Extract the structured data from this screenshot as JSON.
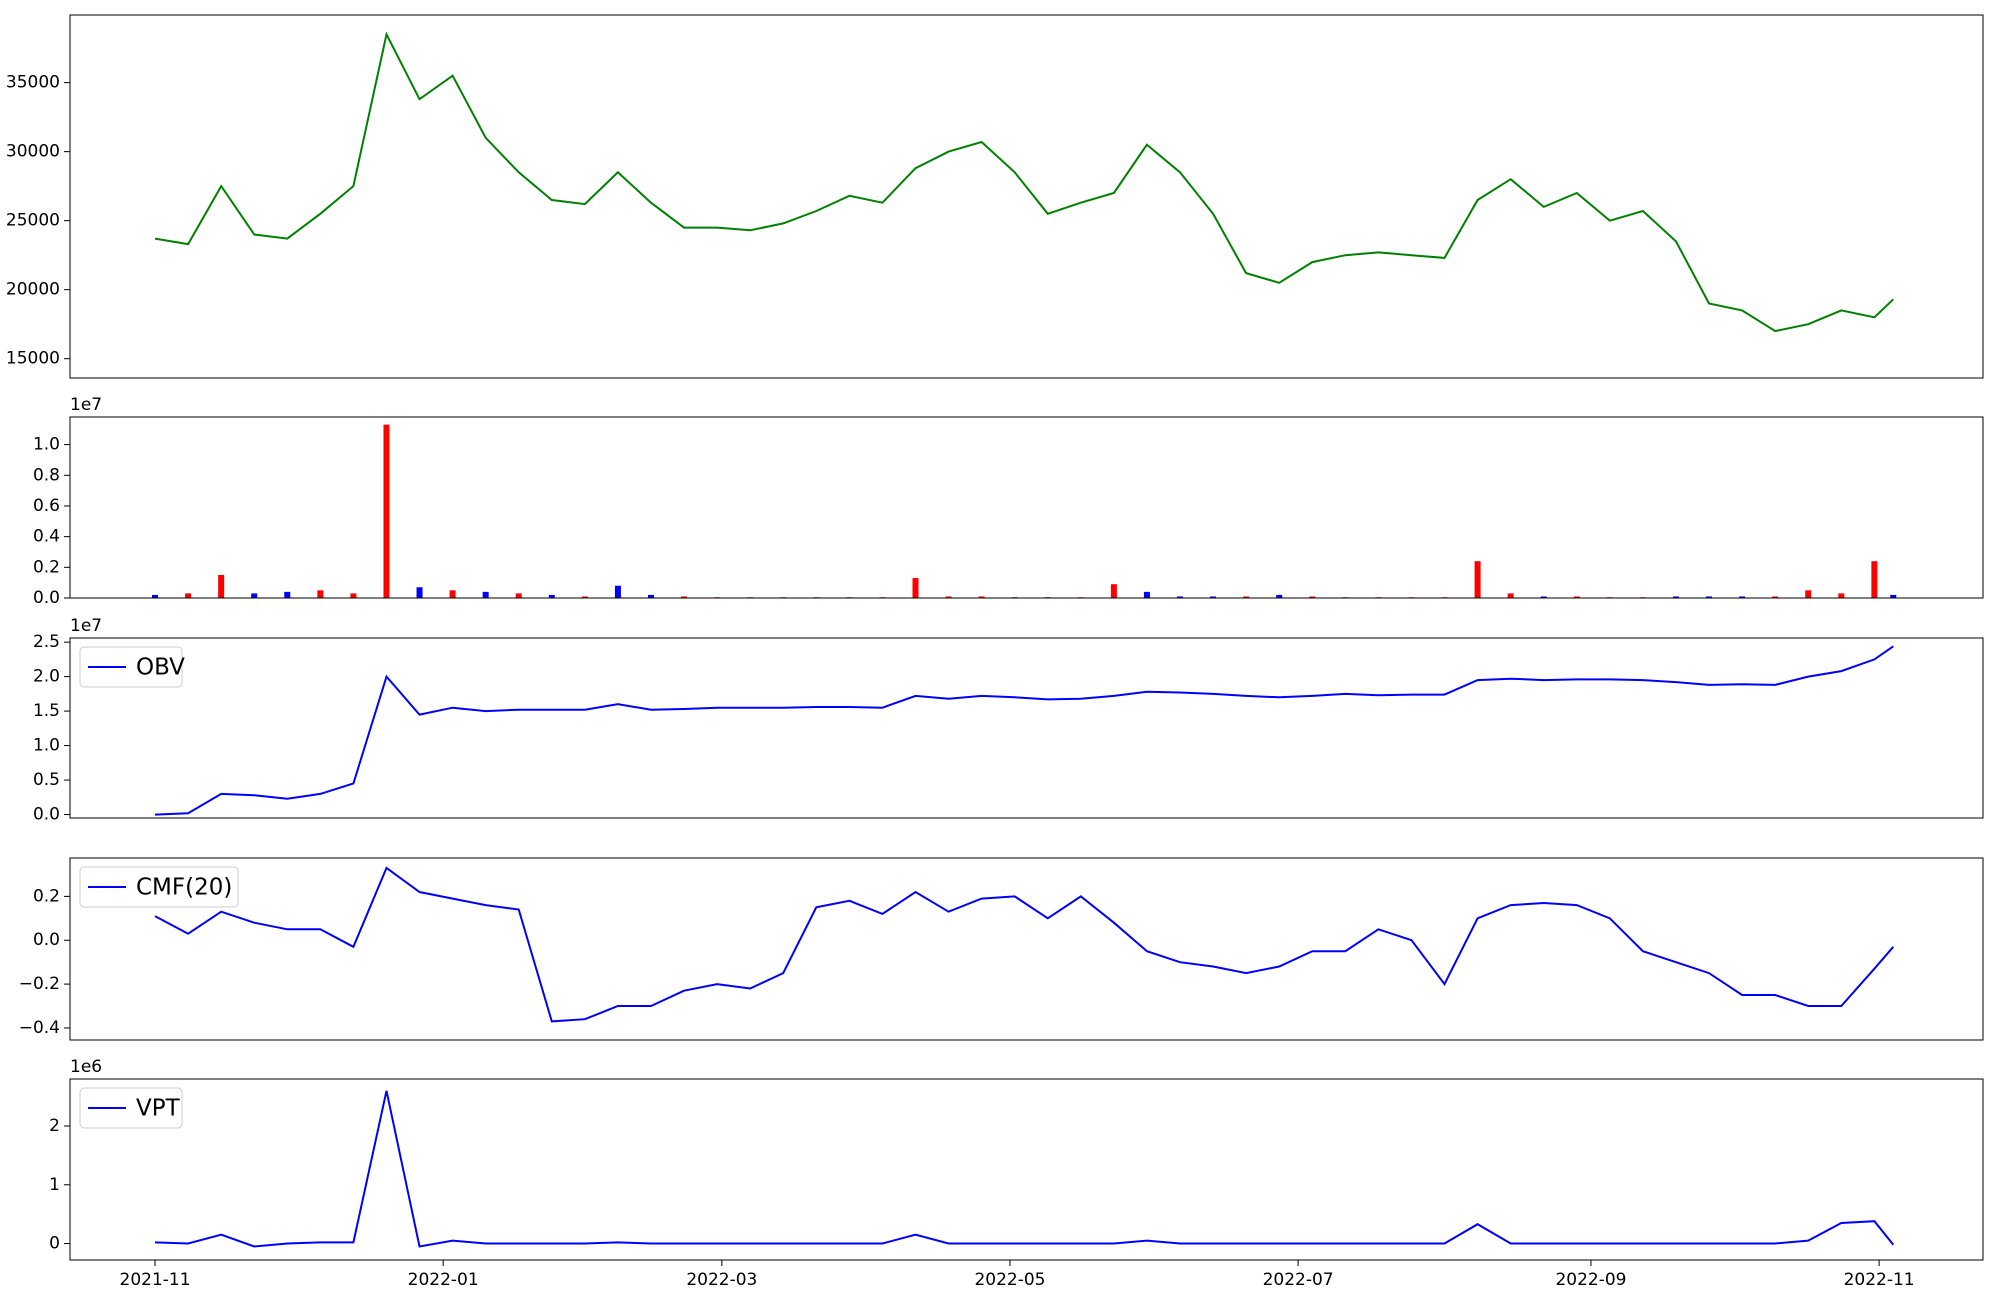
{
  "chart_data": [
    {
      "type": "line",
      "color": "#008000",
      "x": [
        0,
        7,
        14,
        21,
        28,
        35,
        42,
        49,
        56,
        63,
        70,
        77,
        84,
        91,
        98,
        105,
        112,
        119,
        126,
        133,
        140,
        147,
        154,
        161,
        168,
        175,
        182,
        189,
        196,
        203,
        210,
        217,
        224,
        231,
        238,
        245,
        252,
        259,
        266,
        273,
        280,
        287,
        294,
        301,
        308,
        315,
        322,
        329,
        336,
        343,
        350,
        357,
        364,
        368
      ],
      "values": [
        23700,
        23300,
        27500,
        24000,
        23700,
        25500,
        27500,
        38500,
        33800,
        35500,
        31000,
        28500,
        26500,
        26200,
        28500,
        26300,
        24500,
        24500,
        24300,
        24800,
        25700,
        26800,
        26300,
        28800,
        30000,
        30700,
        28500,
        25500,
        26300,
        27000,
        30500,
        28500,
        25500,
        21200,
        20500,
        22000,
        22500,
        22700,
        22500,
        22300,
        26500,
        28000,
        26000,
        27000,
        25000,
        25700,
        23500,
        19000,
        18500,
        17000,
        17500,
        18500,
        18000,
        19300
      ],
      "ylim": [
        13600,
        39900
      ],
      "yticks": [
        15000,
        20000,
        25000,
        30000,
        35000
      ],
      "xlim": [
        -18,
        387
      ]
    },
    {
      "type": "bar",
      "offset_label": "1e7",
      "x": [
        0,
        7,
        14,
        21,
        28,
        35,
        42,
        49,
        56,
        63,
        70,
        77,
        84,
        91,
        98,
        105,
        112,
        119,
        126,
        133,
        140,
        147,
        154,
        161,
        168,
        175,
        182,
        189,
        196,
        203,
        210,
        217,
        224,
        231,
        238,
        245,
        252,
        259,
        266,
        273,
        280,
        287,
        294,
        301,
        308,
        315,
        322,
        329,
        336,
        343,
        350,
        357,
        364,
        368
      ],
      "series": [
        {
          "color": "#ff0000",
          "values": [
            null,
            0.03,
            0.15,
            null,
            null,
            0.05,
            0.03,
            1.13,
            null,
            0.05,
            null,
            0.03,
            null,
            0.01,
            null,
            null,
            0.01,
            0.005,
            0.005,
            0.005,
            0.005,
            0.005,
            0.005,
            0.13,
            0.01,
            0.01,
            null,
            null,
            0.005,
            0.09,
            null,
            null,
            null,
            0.01,
            null,
            0.01,
            0.005,
            0.005,
            0.005,
            0.005,
            0.24,
            0.03,
            null,
            0.01,
            0.005,
            0.005,
            null,
            null,
            null,
            0.01,
            0.05,
            0.03,
            0.24,
            null
          ]
        },
        {
          "color": "#0000ff",
          "values": [
            0.02,
            null,
            null,
            0.03,
            0.04,
            null,
            null,
            null,
            0.07,
            null,
            0.04,
            null,
            0.02,
            null,
            0.08,
            0.02,
            null,
            null,
            null,
            null,
            null,
            null,
            null,
            null,
            null,
            null,
            0.005,
            0.005,
            null,
            null,
            0.04,
            0.01,
            0.01,
            null,
            0.02,
            null,
            null,
            null,
            null,
            null,
            null,
            null,
            0.01,
            null,
            null,
            null,
            0.01,
            0.01,
            0.01,
            null,
            null,
            null,
            null,
            0.02
          ]
        }
      ],
      "ylim": [
        0,
        1.18
      ],
      "yticks": [
        {
          "value": 0,
          "label": "0.0"
        },
        0.2,
        0.4,
        0.6,
        0.8,
        {
          "value": 1,
          "label": "1.0"
        }
      ],
      "xlim": [
        -18,
        387
      ]
    },
    {
      "type": "line",
      "offset_label": "1e7",
      "legend": "upper left",
      "x": [
        0,
        7,
        14,
        21,
        28,
        35,
        42,
        49,
        56,
        63,
        70,
        77,
        84,
        91,
        98,
        105,
        112,
        119,
        126,
        133,
        140,
        147,
        154,
        161,
        168,
        175,
        182,
        189,
        196,
        203,
        210,
        217,
        224,
        231,
        238,
        245,
        252,
        259,
        266,
        273,
        280,
        287,
        294,
        301,
        308,
        315,
        322,
        329,
        336,
        343,
        350,
        357,
        364,
        368
      ],
      "series": [
        {
          "name": "OBV",
          "color": "#0000ff",
          "values": [
            0,
            0.02,
            0.3,
            0.28,
            0.23,
            0.3,
            0.45,
            2.0,
            1.45,
            1.55,
            1.5,
            1.52,
            1.52,
            1.52,
            1.6,
            1.52,
            1.53,
            1.55,
            1.55,
            1.55,
            1.56,
            1.56,
            1.55,
            1.72,
            1.68,
            1.72,
            1.7,
            1.67,
            1.68,
            1.72,
            1.78,
            1.77,
            1.75,
            1.72,
            1.7,
            1.72,
            1.75,
            1.73,
            1.74,
            1.74,
            1.95,
            1.97,
            1.95,
            1.96,
            1.96,
            1.95,
            1.92,
            1.88,
            1.89,
            1.88,
            2.0,
            2.08,
            2.25,
            2.44
          ]
        }
      ],
      "ylim": [
        -0.05,
        2.56
      ],
      "yticks": [
        {
          "value": 0,
          "label": "0.0"
        },
        0.5,
        {
          "value": 1,
          "label": "1.0"
        },
        1.5,
        {
          "value": 2,
          "label": "2.0"
        },
        2.5
      ],
      "xlim": [
        -18,
        387
      ]
    },
    {
      "type": "line",
      "legend": "upper left",
      "x": [
        0,
        7,
        14,
        21,
        28,
        35,
        42,
        49,
        56,
        63,
        70,
        77,
        84,
        91,
        98,
        105,
        112,
        119,
        126,
        133,
        140,
        147,
        154,
        161,
        168,
        175,
        182,
        189,
        196,
        203,
        210,
        217,
        224,
        231,
        238,
        245,
        252,
        259,
        266,
        273,
        280,
        287,
        294,
        301,
        308,
        315,
        322,
        329,
        336,
        343,
        350,
        357,
        364,
        368
      ],
      "series": [
        {
          "name": "CMF(20)",
          "color": "#0000ff",
          "values": [
            0.11,
            0.03,
            0.13,
            0.08,
            0.05,
            0.05,
            -0.03,
            0.33,
            0.22,
            0.19,
            0.16,
            0.14,
            -0.37,
            -0.36,
            -0.3,
            -0.3,
            -0.23,
            -0.2,
            -0.22,
            -0.15,
            0.15,
            0.18,
            0.12,
            0.22,
            0.13,
            0.19,
            0.2,
            0.1,
            0.2,
            0.08,
            -0.05,
            -0.1,
            -0.12,
            -0.15,
            -0.12,
            -0.05,
            -0.05,
            0.05,
            0,
            -0.2,
            0.1,
            0.16,
            0.17,
            0.16,
            0.1,
            -0.05,
            -0.1,
            -0.15,
            -0.25,
            -0.25,
            -0.3,
            -0.3,
            -0.13,
            -0.03
          ]
        }
      ],
      "ylim": [
        -0.455,
        0.375
      ],
      "yticks": [
        {
          "value": -0.4,
          "label": "−0.4"
        },
        {
          "value": -0.2,
          "label": "−0.2"
        },
        {
          "value": 0,
          "label": "0.0"
        },
        0.2
      ],
      "xlim": [
        -18,
        387
      ]
    },
    {
      "type": "line",
      "offset_label": "1e6",
      "legend": "upper left",
      "x": [
        0,
        7,
        14,
        21,
        28,
        35,
        42,
        49,
        56,
        63,
        70,
        77,
        84,
        91,
        98,
        105,
        112,
        119,
        126,
        133,
        140,
        147,
        154,
        161,
        168,
        175,
        182,
        189,
        196,
        203,
        210,
        217,
        224,
        231,
        238,
        245,
        252,
        259,
        266,
        273,
        280,
        287,
        294,
        301,
        308,
        315,
        322,
        329,
        336,
        343,
        350,
        357,
        364,
        368
      ],
      "series": [
        {
          "name": "VPT",
          "color": "#0000ff",
          "values": [
            0.02,
            0,
            0.15,
            -0.05,
            0,
            0.02,
            0.02,
            2.6,
            -0.05,
            0.05,
            0,
            0,
            0,
            0,
            0.02,
            0,
            0,
            0,
            0,
            0,
            0,
            0,
            0,
            0.15,
            0,
            0,
            0,
            0,
            0,
            0,
            0.05,
            0,
            0,
            0,
            0,
            0,
            0,
            0,
            0,
            0,
            0.33,
            0,
            0,
            0,
            0,
            0,
            0,
            0,
            0,
            0,
            0.05,
            0.35,
            0.38,
            -0.02
          ]
        }
      ],
      "ylim": [
        -0.28,
        2.8
      ],
      "yticks": [
        0,
        1,
        2
      ],
      "xlim": [
        -18,
        387
      ],
      "xticks": [
        {
          "value": 0,
          "label": "2021-11"
        },
        {
          "value": 61,
          "label": "2022-01"
        },
        {
          "value": 120,
          "label": "2022-03"
        },
        {
          "value": 181,
          "label": "2022-05"
        },
        {
          "value": 242,
          "label": "2022-07"
        },
        {
          "value": 304,
          "label": "2022-09"
        },
        {
          "value": 365,
          "label": "2022-11"
        }
      ]
    }
  ]
}
